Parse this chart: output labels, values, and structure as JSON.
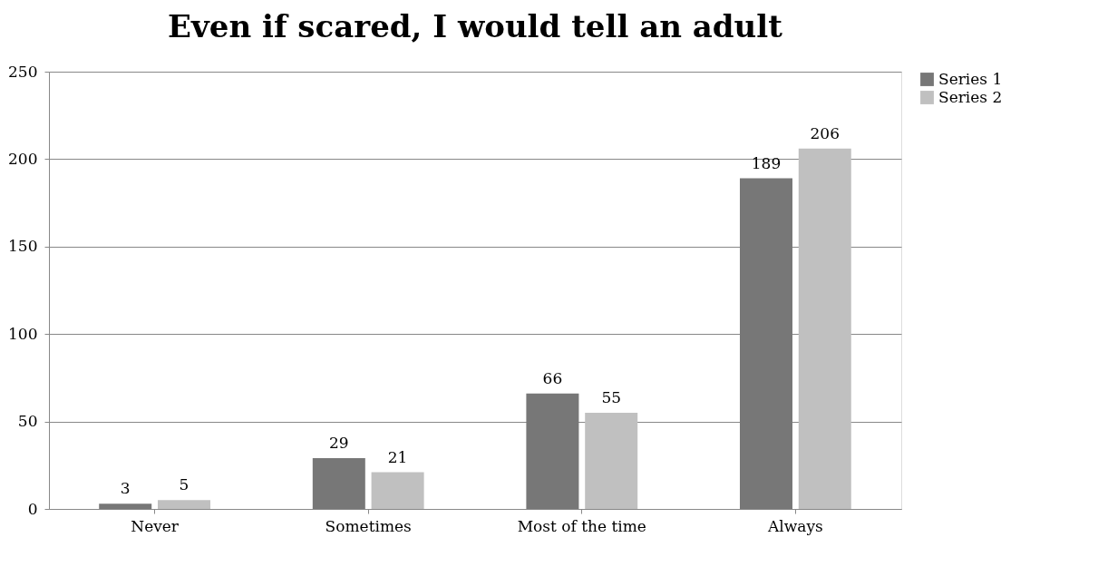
{
  "chart_data": {
    "type": "bar",
    "title": "Even if scared, I would tell an adult",
    "categories": [
      "Never",
      "Sometimes",
      "Most of the time",
      "Always"
    ],
    "series": [
      {
        "name": "Series 1",
        "color": "#777777",
        "values": [
          3,
          29,
          66,
          189
        ]
      },
      {
        "name": "Series 2",
        "color": "#c0c0c0",
        "values": [
          5,
          21,
          55,
          206
        ]
      }
    ],
    "ylim": [
      0,
      250
    ],
    "yticks": [
      0,
      50,
      100,
      150,
      200,
      250
    ],
    "grid": "y",
    "legend": "right",
    "data_labels": true
  }
}
